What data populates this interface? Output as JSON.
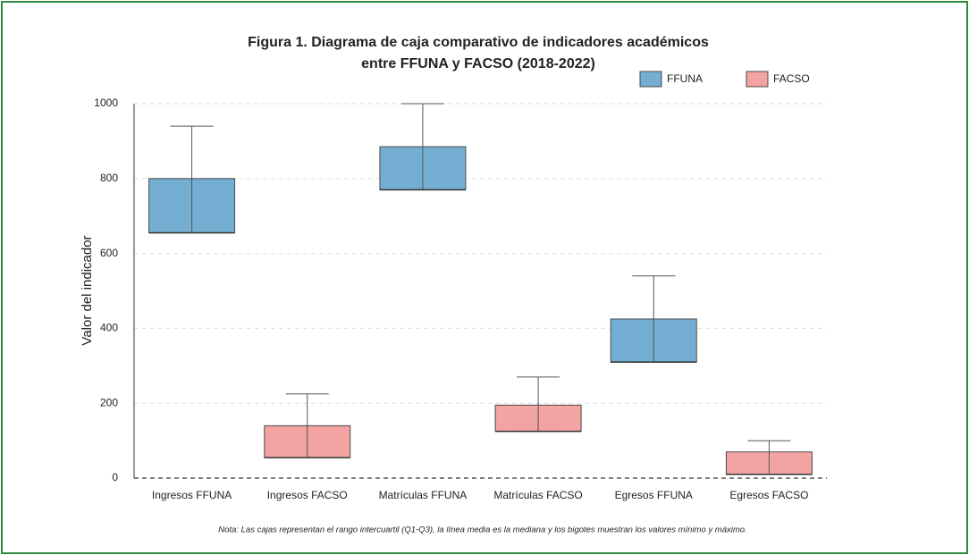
{
  "chart_data": {
    "type": "box",
    "title": [
      "Figura 1. Diagrama de caja comparativo de indicadores académicos",
      "entre FFUNA y FACSO (2018-2022)"
    ],
    "ylabel": "Valor del indicador",
    "categories": [
      "Ingresos FFUNA",
      "Ingresos FACSO",
      "Matrículas FFUNA",
      "Matrículas FACSO",
      "Egresos FFUNA",
      "Egresos FACSO"
    ],
    "series": [
      {
        "name": "FFUNA",
        "color": "#74afd3",
        "boxes": [
          {
            "min": 655,
            "q1": 655,
            "median": 655,
            "q3": 800,
            "max": 940
          },
          null,
          {
            "min": 770,
            "q1": 770,
            "median": 770,
            "q3": 885,
            "max": 1000
          },
          null,
          {
            "min": 310,
            "q1": 310,
            "median": 310,
            "q3": 425,
            "max": 540
          },
          null
        ]
      },
      {
        "name": "FACSO",
        "color": "#f4a3a3",
        "boxes": [
          null,
          {
            "min": 55,
            "q1": 55,
            "median": 55,
            "q3": 140,
            "max": 225
          },
          null,
          {
            "min": 125,
            "q1": 125,
            "median": 125,
            "q3": 195,
            "max": 270
          },
          null,
          {
            "min": 10,
            "q1": 10,
            "median": 10,
            "q3": 70,
            "max": 100
          }
        ]
      }
    ],
    "ylim": [
      0,
      1000
    ],
    "yticks": [
      0,
      200,
      400,
      600,
      800,
      1000
    ],
    "grid": true,
    "legend": "top-right",
    "note": "Nota: Las cajas representan el rango intercuartil (Q1-Q3), la línea media es la mediana y los bigotes muestran los valores mínimo y máximo."
  }
}
